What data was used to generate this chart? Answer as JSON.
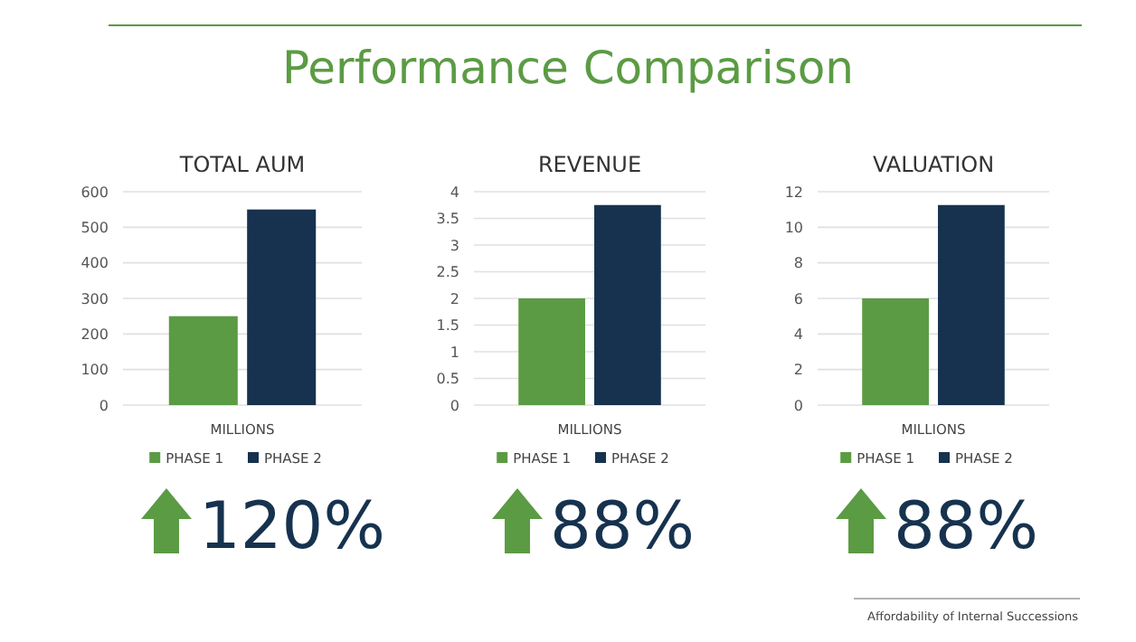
{
  "chart_data": [
    {
      "type": "other",
      "title": "Performance Comparison",
      "annotations": [
        "Affordability of Internal Successions"
      ]
    },
    {
      "type": "bar",
      "title": "TOTAL AUM",
      "categories": [
        "MILLIONS"
      ],
      "series": [
        {
          "name": "PHASE 1",
          "color": "#5b9b44",
          "values": [
            250
          ]
        },
        {
          "name": "PHASE 2",
          "color": "#16324f",
          "values": [
            550
          ]
        }
      ],
      "ylim": [
        0,
        600
      ],
      "yticks": [
        0,
        100,
        200,
        300,
        400,
        500,
        600
      ],
      "grid": "y",
      "legend": "bottom",
      "annotations": [
        "120%"
      ]
    },
    {
      "type": "bar",
      "title": "REVENUE",
      "categories": [
        "MILLIONS"
      ],
      "series": [
        {
          "name": "PHASE 1",
          "color": "#5b9b44",
          "values": [
            2
          ]
        },
        {
          "name": "PHASE 2",
          "color": "#16324f",
          "values": [
            3.75
          ]
        }
      ],
      "ylim": [
        0,
        4
      ],
      "yticks": [
        0,
        0.5,
        1,
        1.5,
        2,
        2.5,
        3,
        3.5,
        4
      ],
      "grid": "y",
      "legend": "bottom",
      "annotations": [
        "88%"
      ]
    },
    {
      "type": "bar",
      "title": "VALUATION",
      "categories": [
        "MILLIONS"
      ],
      "series": [
        {
          "name": "PHASE 1",
          "color": "#5b9b44",
          "values": [
            6
          ]
        },
        {
          "name": "PHASE 2",
          "color": "#16324f",
          "values": [
            11.25
          ]
        }
      ],
      "ylim": [
        0,
        12
      ],
      "yticks": [
        0,
        2,
        4,
        6,
        8,
        10,
        12
      ],
      "grid": "y",
      "legend": "bottom",
      "annotations": [
        "88%"
      ]
    }
  ]
}
